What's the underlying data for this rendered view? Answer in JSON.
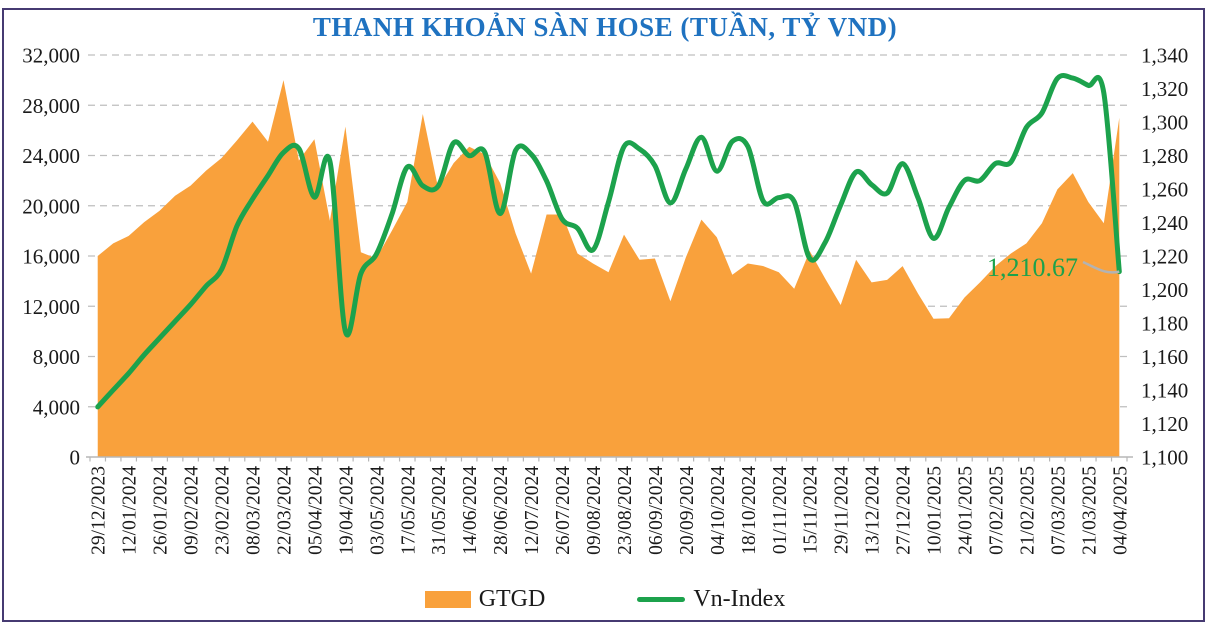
{
  "title": "THANH KHOẢN SÀN HOSE (TUẦN, TỶ VND)",
  "colors": {
    "area": "#F9A13C",
    "line": "#1CA24C",
    "title": "#1F72C0",
    "grid": "#BFBFBF",
    "axis_text": "#1a1a1a",
    "leader": "#B3B3B3",
    "frame": "#463A72"
  },
  "legend": {
    "items": [
      {
        "label": "GTGD",
        "type": "area"
      },
      {
        "label": "Vn-Index",
        "type": "line"
      }
    ]
  },
  "annotation": {
    "text": "1,210.67"
  },
  "axes": {
    "left_ticks": [
      "0",
      "4,000",
      "8,000",
      "12,000",
      "16,000",
      "20,000",
      "24,000",
      "28,000",
      "32,000"
    ],
    "right_ticks": [
      "1,100",
      "1,120",
      "1,140",
      "1,160",
      "1,180",
      "1,200",
      "1,220",
      "1,240",
      "1,260",
      "1,280",
      "1,300",
      "1,320",
      "1,340"
    ],
    "x_labels": [
      "29/12/2023",
      "12/01/2024",
      "26/01/2024",
      "09/02/2024",
      "23/02/2024",
      "08/03/2024",
      "22/03/2024",
      "05/04/2024",
      "19/04/2024",
      "03/05/2024",
      "17/05/2024",
      "31/05/2024",
      "14/06/2024",
      "28/06/2024",
      "12/07/2024",
      "26/07/2024",
      "09/08/2024",
      "23/08/2024",
      "06/09/2024",
      "20/09/2024",
      "04/10/2024",
      "18/10/2024",
      "01/11/2024",
      "15/11/2024",
      "29/11/2024",
      "13/12/2024",
      "27/12/2024",
      "10/01/2025",
      "24/01/2025",
      "07/02/2025",
      "21/02/2025",
      "07/03/2025",
      "21/03/2025",
      "04/04/2025"
    ]
  },
  "chart_data": {
    "type": "combo",
    "title": "THANH KHOẢN SÀN HOSE (TUẦN, TỶ VND)",
    "x_frequency": "weekly",
    "x_labels_shown_every": 2,
    "categories_shown": [
      "29/12/2023",
      "12/01/2024",
      "26/01/2024",
      "09/02/2024",
      "23/02/2024",
      "08/03/2024",
      "22/03/2024",
      "05/04/2024",
      "19/04/2024",
      "03/05/2024",
      "17/05/2024",
      "31/05/2024",
      "14/06/2024",
      "28/06/2024",
      "12/07/2024",
      "26/07/2024",
      "09/08/2024",
      "23/08/2024",
      "06/09/2024",
      "20/09/2024",
      "04/10/2024",
      "18/10/2024",
      "01/11/2024",
      "15/11/2024",
      "29/11/2024",
      "13/12/2024",
      "27/12/2024",
      "10/01/2025",
      "24/01/2025",
      "07/02/2025",
      "21/02/2025",
      "07/03/2025",
      "21/03/2025",
      "04/04/2025"
    ],
    "left_axis": {
      "min": 0,
      "max": 32000,
      "step": 4000
    },
    "right_axis": {
      "min": 1100,
      "max": 1340,
      "step": 20
    },
    "grid": "horizontal-dashed",
    "legend_position": "bottom",
    "series": [
      {
        "name": "GTGD",
        "type": "area",
        "axis": "left",
        "smooth": false,
        "values": [
          16000,
          17000,
          17600,
          18700,
          19600,
          20800,
          21600,
          22800,
          23800,
          25200,
          26700,
          25100,
          30000,
          23600,
          25300,
          18800,
          26300,
          16300,
          15800,
          18000,
          20300,
          27300,
          21400,
          23400,
          24700,
          24100,
          21800,
          17800,
          14600,
          19300,
          19300,
          16200,
          15400,
          14700,
          17700,
          15700,
          15800,
          12400,
          15900,
          18900,
          17500,
          14500,
          15400,
          15200,
          14700,
          13400,
          16400,
          14200,
          12100,
          15700,
          13900,
          14100,
          15200,
          13000,
          11000,
          11050,
          12700,
          13900,
          15200,
          16200,
          17000,
          18600,
          21300,
          22600,
          20300,
          18600,
          27000
        ]
      },
      {
        "name": "Vn-Index",
        "type": "line",
        "axis": "right",
        "smooth": true,
        "last_value_label": "1,210.67",
        "values": [
          1129.93,
          1140.0,
          1150.0,
          1161.0,
          1171.0,
          1181.0,
          1191.0,
          1202.0,
          1212.0,
          1238.0,
          1254.0,
          1268.0,
          1281.8,
          1284.09,
          1255.11,
          1276.6,
          1174.85,
          1209.52,
          1221.03,
          1244.7,
          1273.11,
          1261.93,
          1261.72,
          1287.58,
          1279.91,
          1282.02,
          1245.32,
          1283.04,
          1280.75,
          1264.78,
          1242.11,
          1236.6,
          1223.64,
          1252.23,
          1285.32,
          1283.87,
          1273.96,
          1251.71,
          1272.04,
          1290.92,
          1270.6,
          1288.39,
          1285.46,
          1252.72,
          1254.89,
          1252.56,
          1218.57,
          1228.1,
          1250.46,
          1270.14,
          1262.57,
          1257.5,
          1275.14,
          1254.59,
          1230.48,
          1249.11,
          1265.05,
          1265.05,
          1275.2,
          1276.08,
          1296.75,
          1305.36,
          1326.05,
          1326.18,
          1321.88,
          1317.46,
          1210.67
        ]
      }
    ]
  }
}
